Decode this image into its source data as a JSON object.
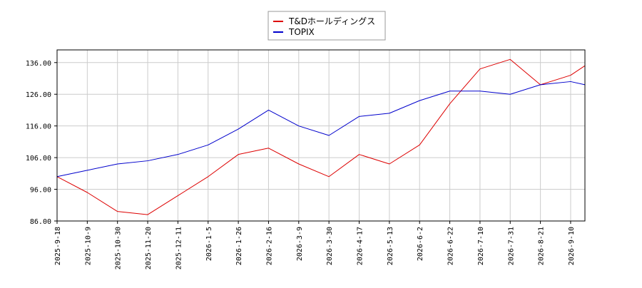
{
  "chart_data": {
    "type": "line",
    "title": "",
    "xlabel": "",
    "ylabel": "",
    "ylim": [
      86,
      140
    ],
    "grid": true,
    "legend_position": "top-center",
    "y_ticks": [
      86,
      96,
      106,
      116,
      126,
      136
    ],
    "y_tick_labels": [
      "86.00",
      "96.00",
      "106.00",
      "116.00",
      "126.00",
      "136.00"
    ],
    "x_tick_labels": [
      "2025-9-18",
      "2025-10-9",
      "2025-10-30",
      "2025-11-20",
      "2025-12-11",
      "2026-1-5",
      "2026-1-26",
      "2026-2-16",
      "2026-3-9",
      "2026-3-30",
      "2026-4-17",
      "2026-5-13",
      "2026-6-2",
      "2026-6-22",
      "2026-7-10",
      "2026-7-31",
      "2026-8-21",
      "2026-9-10"
    ],
    "x": [
      "2025-9-18",
      "2025-10-9",
      "2025-10-30",
      "2025-11-20",
      "2025-12-11",
      "2026-1-5",
      "2026-1-26",
      "2026-2-16",
      "2026-3-9",
      "2026-3-30",
      "2026-4-17",
      "2026-5-13",
      "2026-6-2",
      "2026-6-22",
      "2026-7-10",
      "2026-7-31",
      "2026-8-21",
      "2026-9-10",
      "2026-9-15"
    ],
    "series": [
      {
        "name": "T&Dホールディングス",
        "color": "#dd0000",
        "values": [
          100,
          95,
          89,
          88,
          94,
          100,
          107,
          109,
          104,
          100,
          107,
          104,
          110,
          123,
          134,
          137,
          129,
          132,
          135
        ]
      },
      {
        "name": "TOPIX",
        "color": "#0000cc",
        "values": [
          100,
          102,
          104,
          105,
          107,
          110,
          115,
          121,
          116,
          113,
          119,
          120,
          124,
          127,
          127,
          126,
          129,
          130,
          129
        ]
      }
    ]
  }
}
